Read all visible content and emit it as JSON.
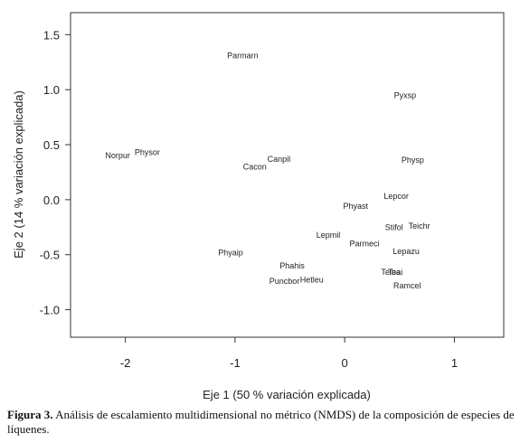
{
  "chart_data": {
    "type": "scatter",
    "title": "",
    "xlabel": "Eje 1 (50 % variación explicada)",
    "ylabel": "Eje 2 (14 % variación explicada)",
    "xlim": [
      -2.5,
      1.45
    ],
    "ylim": [
      -1.25,
      1.7
    ],
    "xticks": [
      -2,
      -1,
      0,
      1
    ],
    "yticks": [
      1.5,
      1.0,
      0.5,
      0.0,
      -0.5,
      -1.0
    ],
    "xtick_labels": [
      "-2",
      "-1",
      "0",
      "1"
    ],
    "ytick_labels": [
      "1.5",
      "1.0",
      "0.5",
      "0.0",
      "-0.5",
      "-1.0"
    ],
    "grid": false,
    "points": [
      {
        "label": "Parmarn",
        "x": -0.93,
        "y": 1.31
      },
      {
        "label": "Pyxsp",
        "x": 0.55,
        "y": 0.95
      },
      {
        "label": "Norpur",
        "x": -2.07,
        "y": 0.4
      },
      {
        "label": "Physor",
        "x": -1.8,
        "y": 0.43
      },
      {
        "label": "Canpil",
        "x": -0.6,
        "y": 0.37
      },
      {
        "label": "Cacon",
        "x": -0.82,
        "y": 0.3
      },
      {
        "label": "Physp",
        "x": 0.62,
        "y": 0.36
      },
      {
        "label": "Lepcor",
        "x": 0.47,
        "y": 0.03
      },
      {
        "label": "Phyast",
        "x": 0.1,
        "y": -0.06
      },
      {
        "label": "Stifol",
        "x": 0.45,
        "y": -0.25
      },
      {
        "label": "Teichr",
        "x": 0.68,
        "y": -0.24
      },
      {
        "label": "Lepmil",
        "x": -0.15,
        "y": -0.32
      },
      {
        "label": "Parmeci",
        "x": 0.18,
        "y": -0.4
      },
      {
        "label": "Lepazu",
        "x": 0.56,
        "y": -0.47
      },
      {
        "label": "Phyaip",
        "x": -1.04,
        "y": -0.48
      },
      {
        "label": "Phahis",
        "x": -0.48,
        "y": -0.6
      },
      {
        "label": "Telba",
        "x": 0.42,
        "y": -0.66
      },
      {
        "label": "Teai",
        "x": 0.46,
        "y": -0.66
      },
      {
        "label": "Hetleu",
        "x": -0.3,
        "y": -0.73
      },
      {
        "label": "Puncbor",
        "x": -0.55,
        "y": -0.74
      },
      {
        "label": "Ramcel",
        "x": 0.57,
        "y": -0.78
      }
    ]
  },
  "caption": {
    "label": "Figura 3.",
    "text": " Análisis de escalamiento multidimensional no métrico (NMDS) de la composición de especies de líquenes."
  }
}
